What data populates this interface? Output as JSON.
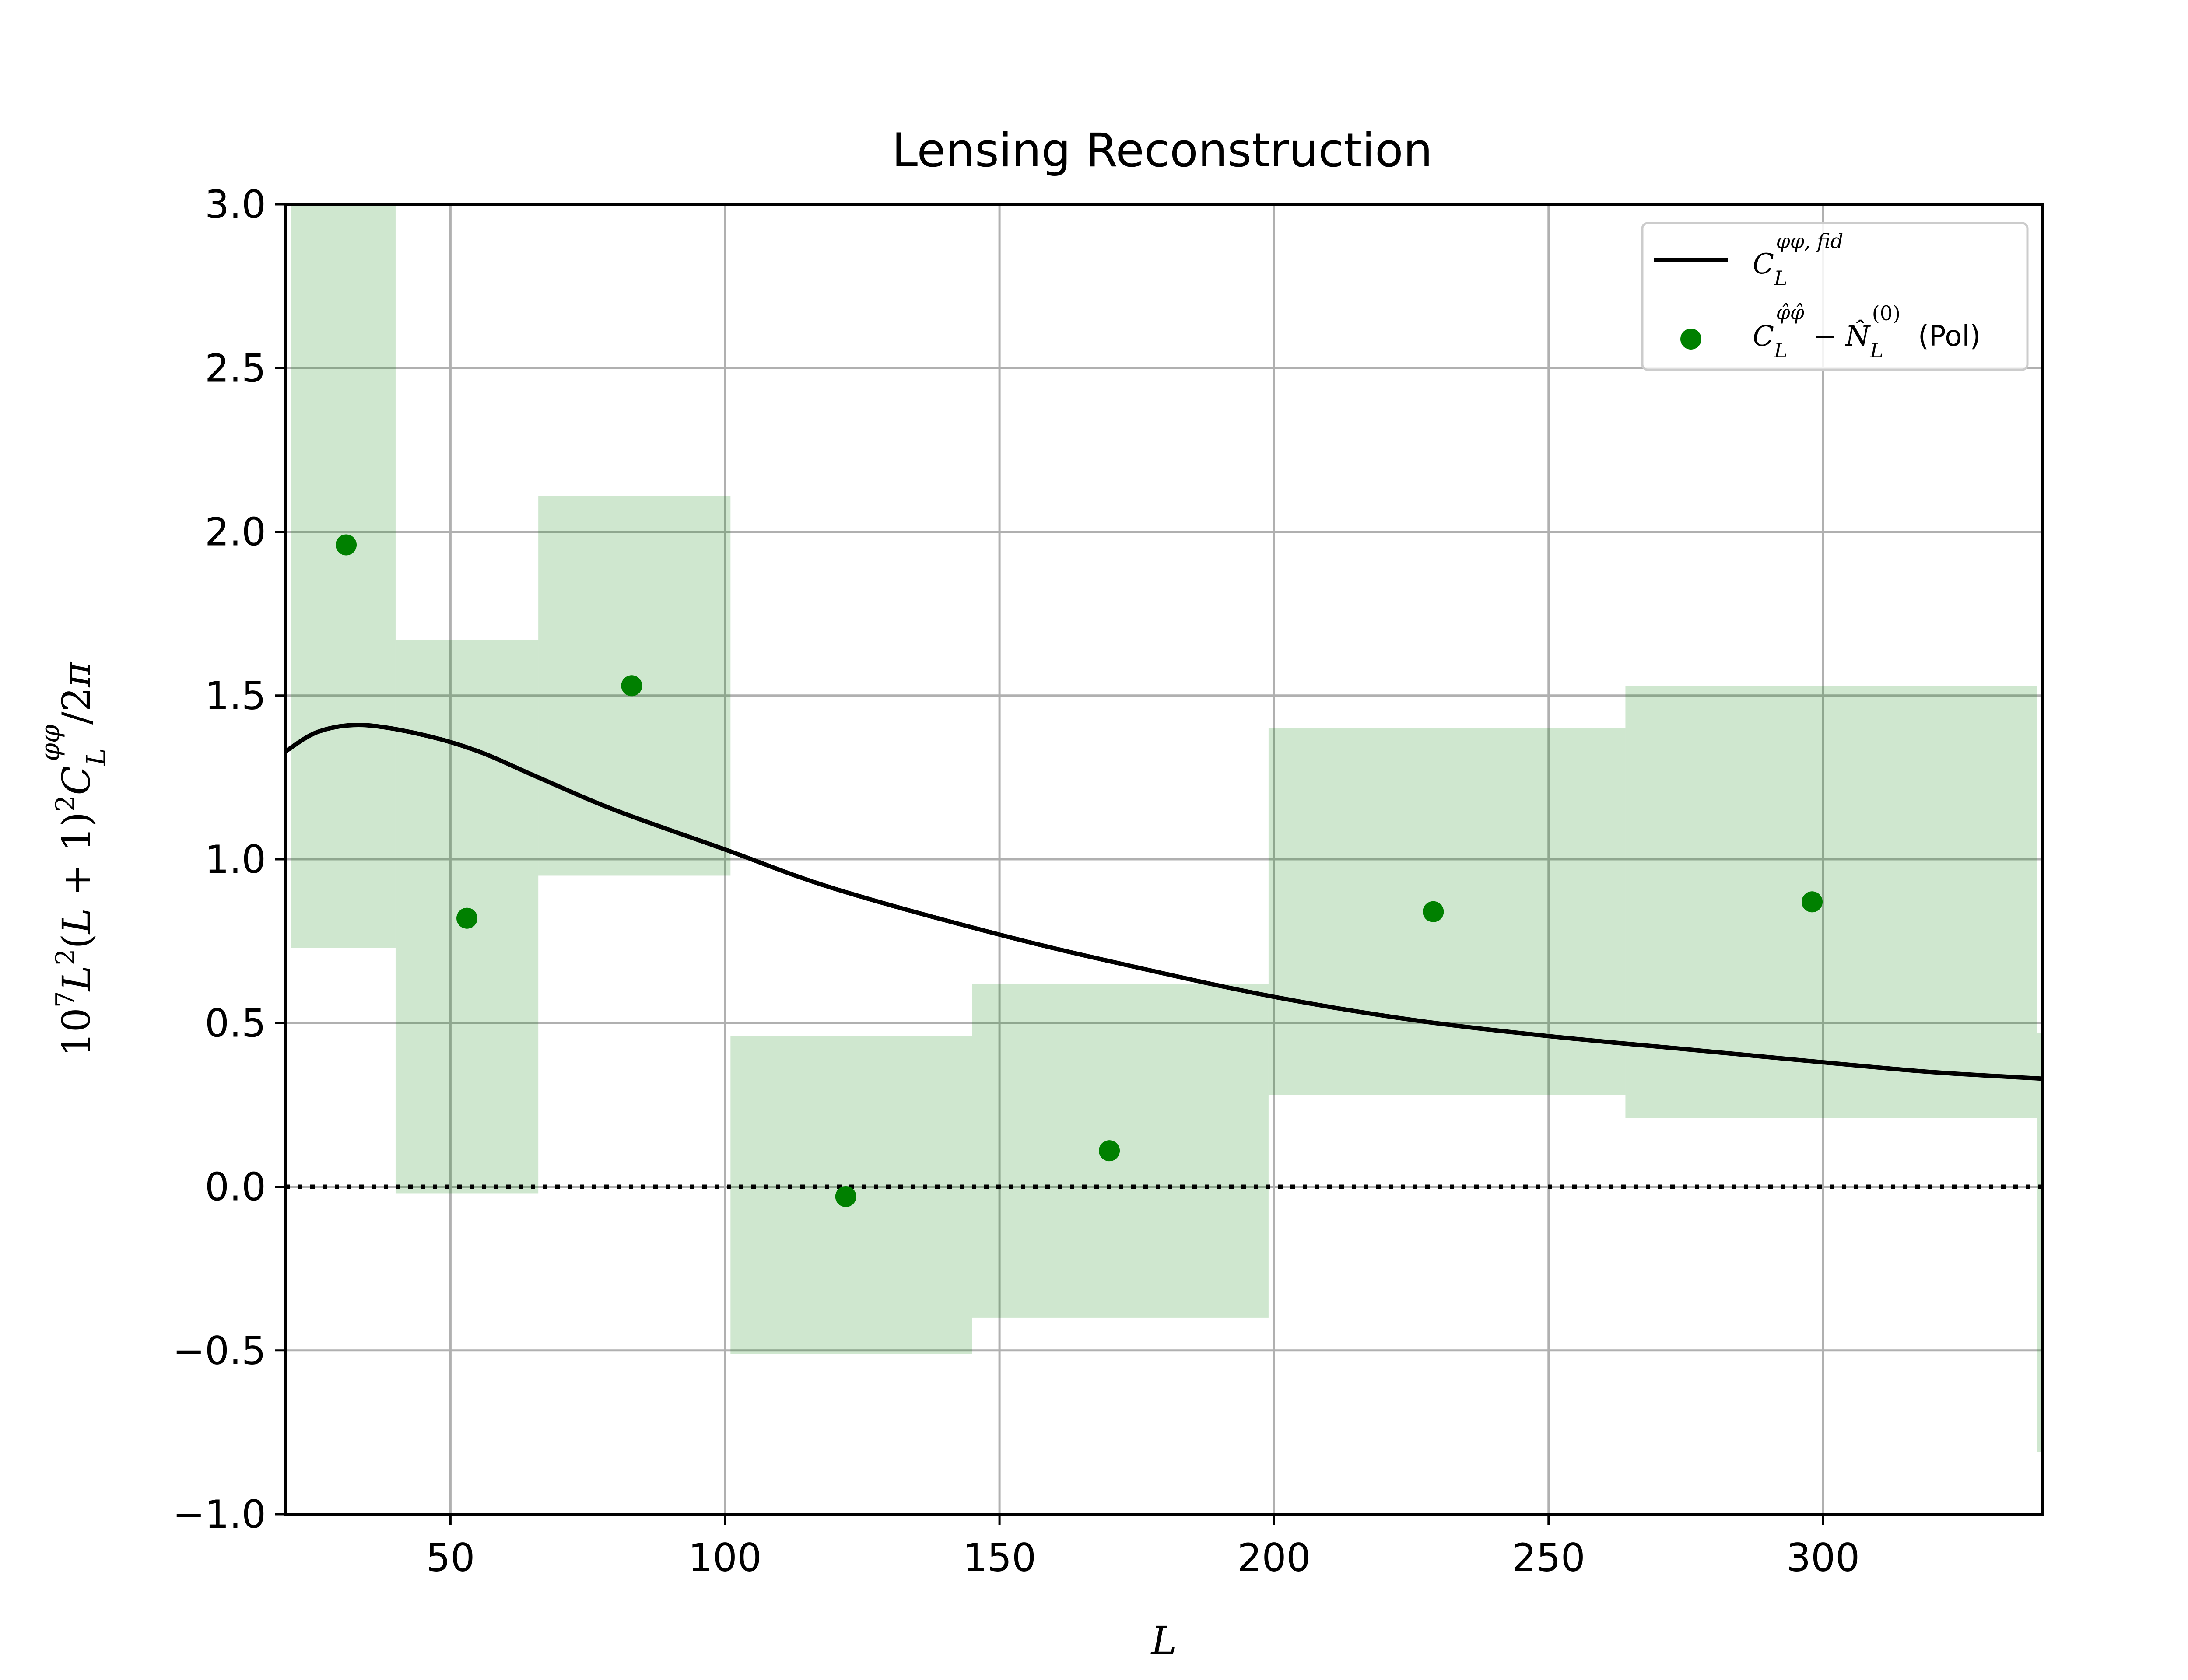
{
  "chart_data": {
    "type": "scatter",
    "title": "Lensing Reconstruction",
    "xlabel": "L",
    "ylabel": "10⁷L²(L+1)²C_L^φφ/2π",
    "xlim": [
      20,
      340
    ],
    "ylim": [
      -1.0,
      3.0
    ],
    "x_ticks": [
      50,
      100,
      150,
      200,
      250,
      300
    ],
    "x_tick_labels": [
      "50",
      "100",
      "150",
      "200",
      "250",
      "300"
    ],
    "y_ticks": [
      -1.0,
      -0.5,
      0.0,
      0.5,
      1.0,
      1.5,
      2.0,
      2.5,
      3.0
    ],
    "y_tick_labels": [
      "−1.0",
      "−0.5",
      "0.0",
      "0.5",
      "1.0",
      "1.5",
      "2.0",
      "2.5",
      "3.0"
    ],
    "grid": true,
    "legend_position": "top-right",
    "legend": {
      "fid_label": "C_L^{φφ, fid}",
      "pol_label": "C_L^{φ̂φ̂} − N̂_L^{(0)}",
      "pol_suffix": "(Pol)"
    },
    "series": [
      {
        "name": "C_L^{φφ, fid}",
        "kind": "line",
        "color": "#000000",
        "x": [
          20,
          26,
          34,
          45,
          55,
          66,
          80,
          100,
          120,
          150,
          175,
          200,
          225,
          250,
          275,
          300,
          320,
          340
        ],
        "y": [
          1.33,
          1.39,
          1.41,
          1.38,
          1.33,
          1.25,
          1.15,
          1.03,
          0.91,
          0.77,
          0.67,
          0.58,
          0.51,
          0.46,
          0.42,
          0.38,
          0.35,
          0.33
        ]
      },
      {
        "name": "C_L^{φ̂φ̂} − N̂_L^{(0)} (Pol)",
        "kind": "scatter",
        "color": "#008000",
        "x": [
          31,
          53,
          83,
          122,
          170,
          229,
          298
        ],
        "y": [
          1.96,
          0.82,
          1.53,
          -0.03,
          0.11,
          0.84,
          0.87
        ]
      },
      {
        "name": "error-bands",
        "kind": "bands",
        "color": "#008000",
        "opacity": 0.19,
        "bins": [
          {
            "x0": 21,
            "x1": 40,
            "low": 0.73,
            "high": 3.0
          },
          {
            "x0": 40,
            "x1": 66,
            "low": -0.02,
            "high": 1.67
          },
          {
            "x0": 66,
            "x1": 101,
            "low": 0.95,
            "high": 2.11
          },
          {
            "x0": 101,
            "x1": 145,
            "low": -0.51,
            "high": 0.46
          },
          {
            "x0": 145,
            "x1": 199,
            "low": -0.4,
            "high": 0.62
          },
          {
            "x0": 199,
            "x1": 264,
            "low": 0.28,
            "high": 1.4
          },
          {
            "x0": 264,
            "x1": 339,
            "low": 0.21,
            "high": 1.53
          },
          {
            "x0": 339,
            "x1": 340,
            "low": -0.81,
            "high": 0.47
          }
        ]
      },
      {
        "name": "zero-line",
        "kind": "hline",
        "y": 0.0,
        "style": "dotted",
        "color": "#000000"
      }
    ]
  }
}
